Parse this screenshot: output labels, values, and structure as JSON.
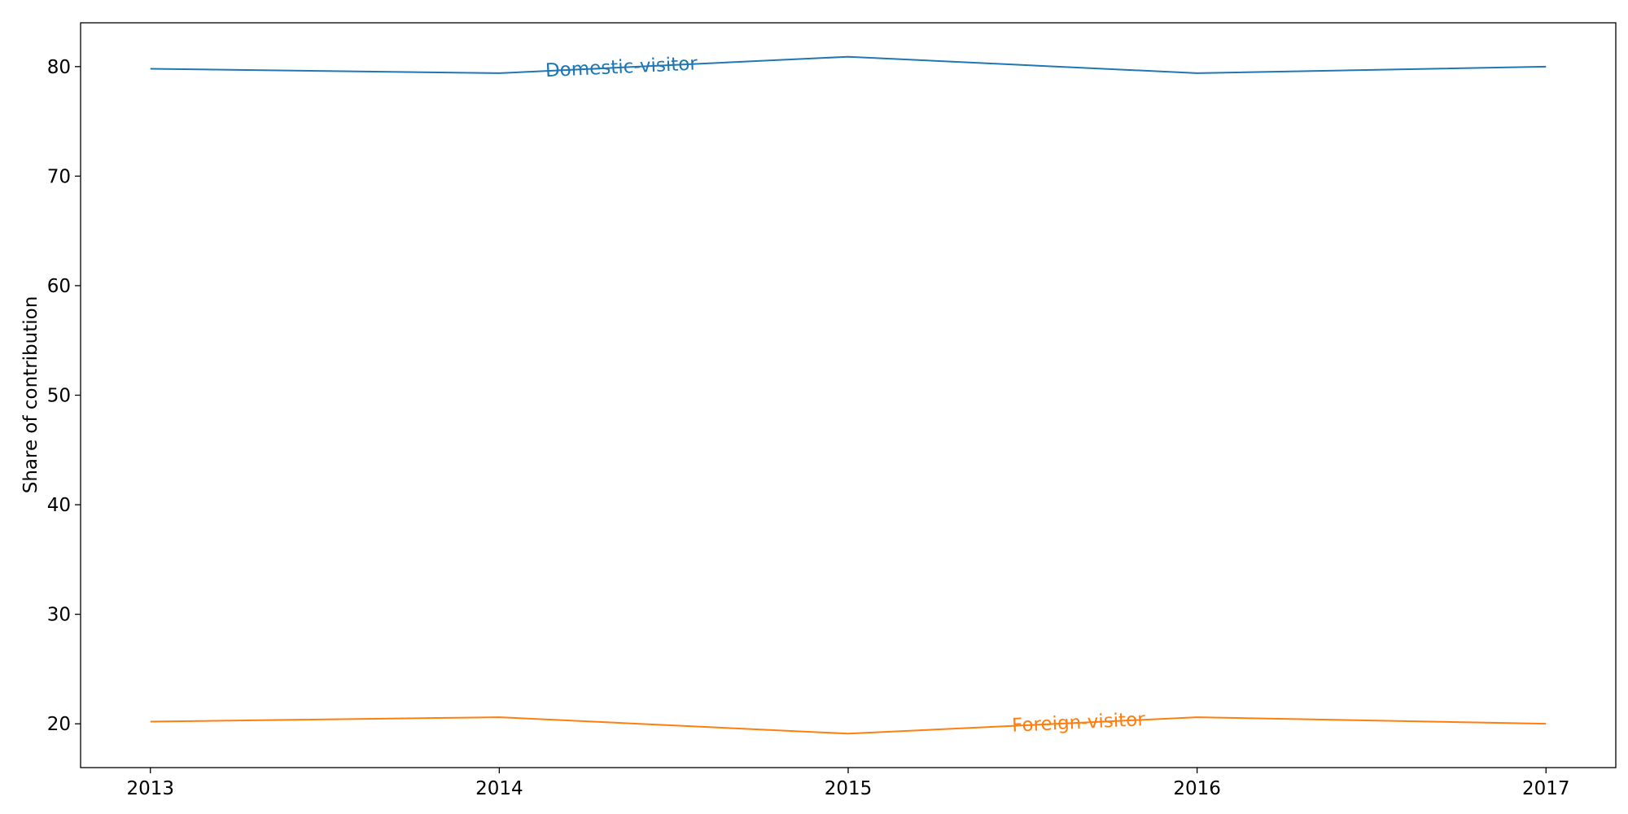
{
  "chart_data": {
    "type": "line",
    "title": "",
    "xlabel": "",
    "ylabel": "Share of contribution",
    "x": [
      2013,
      2014,
      2015,
      2016,
      2017
    ],
    "xlim": [
      2012.8,
      2017.2
    ],
    "ylim": [
      16,
      84
    ],
    "yticks": [
      20,
      30,
      40,
      50,
      60,
      70,
      80
    ],
    "grid": false,
    "legend": "none (series labeled inline on lines)",
    "series": [
      {
        "name": "Domestic-visitor",
        "color": "#1f77b4",
        "values": [
          79.8,
          79.4,
          80.9,
          79.4,
          80.0
        ],
        "label_at_x": 2014.35
      },
      {
        "name": "Foreign-visitor",
        "color": "#ff7f0e",
        "values": [
          20.2,
          20.6,
          19.1,
          20.6,
          20.0
        ],
        "label_at_x": 2015.66
      }
    ]
  }
}
